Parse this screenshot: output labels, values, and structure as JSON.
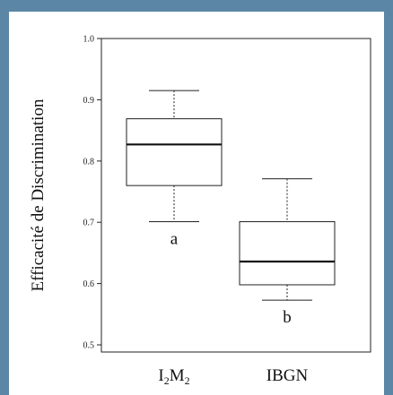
{
  "chart_data": {
    "type": "boxplot",
    "title": "",
    "ylabel": "Efficacité de Discrimination",
    "xlabel": "",
    "ylim": [
      0.5,
      1.0
    ],
    "yticks": [
      "0.5",
      "0.6",
      "0.7",
      "0.8",
      "0.9",
      "1.0"
    ],
    "grid": false,
    "categories": [
      {
        "label": "I",
        "sub": "2",
        "label2": "M",
        "sub2": "2"
      },
      {
        "label": "IBGN"
      }
    ],
    "boxes": [
      {
        "whisker_low": 0.701,
        "q1": 0.76,
        "median": 0.827,
        "q3": 0.869,
        "whisker_high": 0.915,
        "letter": "a"
      },
      {
        "whisker_low": 0.573,
        "q1": 0.598,
        "median": 0.636,
        "q3": 0.701,
        "whisker_high": 0.771,
        "letter": "b"
      }
    ]
  }
}
